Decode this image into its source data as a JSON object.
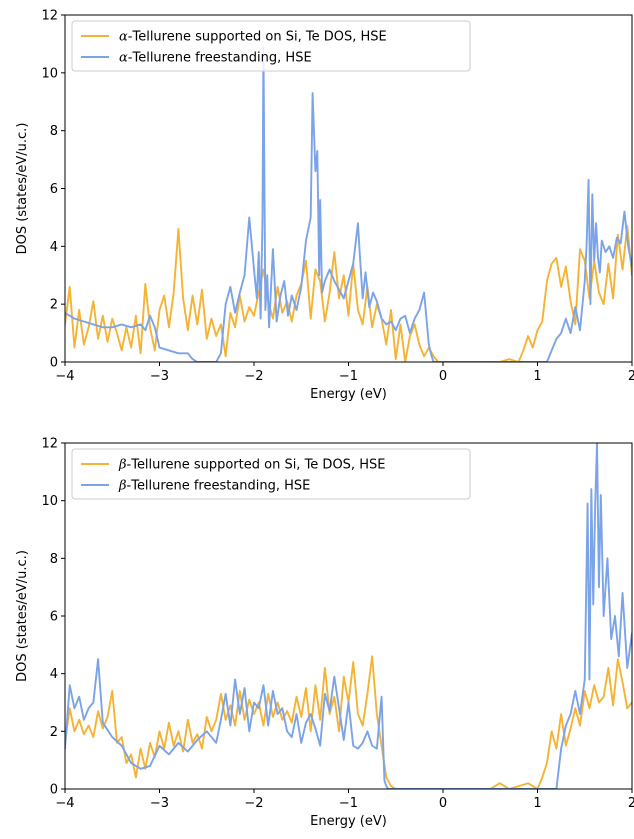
{
  "chart_data": [
    {
      "type": "line",
      "xlabel": "Energy (eV)",
      "ylabel": "DOS (states/eV/u.c.)",
      "xlim": [
        -4,
        2
      ],
      "ylim": [
        0,
        12
      ],
      "xticks": [
        -4,
        -3,
        -2,
        -1,
        0,
        1,
        2
      ],
      "xtick_labels": [
        "−4",
        "−3",
        "−2",
        "−1",
        "0",
        "1",
        "2"
      ],
      "yticks": [
        0,
        2,
        4,
        6,
        8,
        10,
        12
      ],
      "ytick_labels": [
        "0",
        "2",
        "4",
        "6",
        "8",
        "10",
        "12"
      ],
      "grid": false,
      "legend_position": "top-left",
      "series": [
        {
          "name_prefix": "α",
          "name_rest": "-Tellurene supported on Si, Te DOS, HSE",
          "color": "#F5B335",
          "x": [
            -4.0,
            -3.95,
            -3.9,
            -3.85,
            -3.8,
            -3.75,
            -3.7,
            -3.65,
            -3.6,
            -3.55,
            -3.5,
            -3.45,
            -3.4,
            -3.35,
            -3.3,
            -3.25,
            -3.2,
            -3.15,
            -3.1,
            -3.05,
            -3.0,
            -2.95,
            -2.9,
            -2.85,
            -2.8,
            -2.75,
            -2.7,
            -2.65,
            -2.6,
            -2.55,
            -2.5,
            -2.45,
            -2.4,
            -2.35,
            -2.3,
            -2.25,
            -2.2,
            -2.15,
            -2.1,
            -2.05,
            -2.0,
            -1.95,
            -1.9,
            -1.85,
            -1.8,
            -1.75,
            -1.7,
            -1.65,
            -1.6,
            -1.55,
            -1.5,
            -1.45,
            -1.4,
            -1.35,
            -1.3,
            -1.25,
            -1.2,
            -1.15,
            -1.1,
            -1.05,
            -1.0,
            -0.95,
            -0.9,
            -0.85,
            -0.8,
            -0.75,
            -0.7,
            -0.65,
            -0.6,
            -0.55,
            -0.5,
            -0.45,
            -0.4,
            -0.35,
            -0.3,
            -0.25,
            -0.2,
            -0.15,
            -0.1,
            -0.05,
            0.0,
            0.2,
            0.4,
            0.6,
            0.7,
            0.8,
            0.85,
            0.9,
            0.95,
            1.0,
            1.05,
            1.1,
            1.15,
            1.2,
            1.25,
            1.3,
            1.35,
            1.4,
            1.45,
            1.5,
            1.55,
            1.6,
            1.65,
            1.7,
            1.75,
            1.8,
            1.85,
            1.9,
            1.95,
            2.0
          ],
          "y": [
            1.3,
            2.6,
            0.5,
            1.8,
            0.6,
            1.2,
            2.1,
            0.8,
            1.6,
            0.7,
            1.5,
            1.0,
            0.4,
            1.2,
            0.5,
            1.6,
            0.3,
            2.7,
            1.2,
            0.4,
            1.8,
            2.3,
            1.2,
            2.4,
            4.6,
            2.2,
            1.1,
            2.3,
            1.3,
            2.5,
            0.8,
            1.5,
            0.9,
            1.3,
            0.2,
            1.7,
            1.2,
            2.3,
            1.4,
            1.9,
            1.6,
            2.4,
            3.2,
            2.1,
            1.5,
            2.6,
            1.7,
            2.1,
            1.4,
            2.3,
            2.7,
            3.5,
            1.5,
            3.2,
            2.8,
            1.4,
            2.4,
            3.8,
            2.2,
            3.0,
            1.6,
            3.4,
            1.8,
            1.3,
            2.6,
            1.2,
            2.0,
            1.5,
            0.6,
            1.8,
            0.1,
            1.3,
            0.0,
            0.9,
            1.3,
            0.6,
            0.2,
            0.5,
            0.2,
            0.0,
            0.0,
            0.0,
            0.0,
            0.0,
            0.1,
            0.0,
            0.4,
            0.9,
            0.5,
            1.1,
            1.4,
            2.8,
            3.4,
            3.6,
            2.6,
            3.3,
            2.1,
            1.3,
            3.9,
            3.5,
            2.2,
            3.5,
            2.4,
            2.0,
            3.4,
            2.2,
            4.4,
            3.2,
            4.7,
            3.0
          ]
        },
        {
          "name_prefix": "α",
          "name_rest": "-Tellurene freestanding, HSE",
          "color": "#7BA3E8",
          "x": [
            -4.0,
            -3.9,
            -3.8,
            -3.7,
            -3.6,
            -3.5,
            -3.4,
            -3.3,
            -3.2,
            -3.15,
            -3.1,
            -3.05,
            -3.0,
            -2.9,
            -2.8,
            -2.7,
            -2.65,
            -2.6,
            -2.4,
            -2.35,
            -2.3,
            -2.25,
            -2.2,
            -2.15,
            -2.1,
            -2.05,
            -2.0,
            -1.97,
            -1.95,
            -1.93,
            -1.91,
            -1.9,
            -1.88,
            -1.86,
            -1.84,
            -1.8,
            -1.76,
            -1.72,
            -1.68,
            -1.64,
            -1.6,
            -1.55,
            -1.5,
            -1.45,
            -1.4,
            -1.38,
            -1.35,
            -1.33,
            -1.31,
            -1.3,
            -1.28,
            -1.25,
            -1.2,
            -1.15,
            -1.1,
            -1.05,
            -1.0,
            -0.95,
            -0.9,
            -0.88,
            -0.85,
            -0.82,
            -0.78,
            -0.74,
            -0.7,
            -0.65,
            -0.6,
            -0.55,
            -0.5,
            -0.45,
            -0.4,
            -0.35,
            -0.3,
            -0.25,
            -0.2,
            -0.15,
            -0.12,
            -0.1,
            -0.08,
            -0.05,
            0.0,
            0.3,
            0.6,
            0.9,
            1.1,
            1.15,
            1.2,
            1.25,
            1.3,
            1.35,
            1.4,
            1.45,
            1.5,
            1.52,
            1.54,
            1.56,
            1.58,
            1.6,
            1.62,
            1.64,
            1.66,
            1.68,
            1.72,
            1.76,
            1.8,
            1.84,
            1.88,
            1.92,
            1.96,
            2.0
          ],
          "y": [
            1.7,
            1.5,
            1.4,
            1.3,
            1.2,
            1.2,
            1.3,
            1.2,
            1.3,
            1.1,
            1.6,
            1.2,
            0.5,
            0.4,
            0.3,
            0.3,
            0.1,
            0.0,
            0.0,
            0.3,
            2.0,
            2.6,
            1.7,
            2.4,
            3.0,
            5.0,
            3.2,
            2.2,
            3.8,
            1.5,
            4.9,
            10.9,
            1.8,
            3.0,
            1.2,
            3.9,
            1.4,
            2.3,
            2.8,
            1.6,
            2.3,
            1.8,
            2.6,
            4.2,
            5.0,
            9.3,
            6.6,
            7.3,
            3.0,
            5.6,
            2.4,
            2.8,
            3.2,
            2.8,
            2.5,
            2.2,
            2.8,
            3.4,
            4.8,
            3.7,
            2.2,
            3.1,
            1.9,
            2.4,
            2.1,
            1.5,
            1.3,
            1.4,
            1.1,
            1.5,
            1.6,
            1.0,
            1.5,
            1.8,
            2.4,
            0.6,
            0.2,
            0.0,
            0.0,
            0.0,
            0.0,
            0.0,
            0.0,
            0.0,
            0.0,
            0.4,
            0.8,
            1.0,
            1.5,
            1.0,
            1.9,
            1.1,
            2.8,
            4.1,
            6.3,
            2.0,
            5.8,
            3.5,
            4.8,
            3.6,
            3.1,
            4.2,
            3.8,
            4.0,
            3.6,
            4.3,
            4.1,
            5.2,
            4.0,
            3.3
          ]
        }
      ]
    },
    {
      "type": "line",
      "xlabel": "Energy (eV)",
      "ylabel": "DOS (states/eV/u.c.)",
      "xlim": [
        -4,
        2
      ],
      "ylim": [
        0,
        12
      ],
      "xticks": [
        -4,
        -3,
        -2,
        -1,
        0,
        1,
        2
      ],
      "xtick_labels": [
        "−4",
        "−3",
        "−2",
        "−1",
        "0",
        "1",
        "2"
      ],
      "yticks": [
        0,
        2,
        4,
        6,
        8,
        10,
        12
      ],
      "ytick_labels": [
        "0",
        "2",
        "4",
        "6",
        "8",
        "10",
        "12"
      ],
      "grid": false,
      "legend_position": "top-left",
      "series": [
        {
          "name_prefix": "β",
          "name_rest": "-Tellurene supported on Si, Te DOS, HSE",
          "color": "#F5B335",
          "x": [
            -4.0,
            -3.95,
            -3.9,
            -3.85,
            -3.8,
            -3.75,
            -3.7,
            -3.65,
            -3.6,
            -3.55,
            -3.5,
            -3.45,
            -3.4,
            -3.35,
            -3.3,
            -3.25,
            -3.2,
            -3.15,
            -3.1,
            -3.05,
            -3.0,
            -2.95,
            -2.9,
            -2.85,
            -2.8,
            -2.75,
            -2.7,
            -2.65,
            -2.6,
            -2.55,
            -2.5,
            -2.45,
            -2.4,
            -2.35,
            -2.3,
            -2.25,
            -2.2,
            -2.15,
            -2.1,
            -2.05,
            -2.0,
            -1.95,
            -1.9,
            -1.85,
            -1.8,
            -1.75,
            -1.7,
            -1.65,
            -1.6,
            -1.55,
            -1.5,
            -1.45,
            -1.4,
            -1.35,
            -1.3,
            -1.25,
            -1.2,
            -1.15,
            -1.1,
            -1.05,
            -1.0,
            -0.95,
            -0.9,
            -0.85,
            -0.8,
            -0.75,
            -0.7,
            -0.65,
            -0.6,
            -0.55,
            -0.5,
            -0.2,
            0.2,
            0.5,
            0.6,
            0.7,
            0.8,
            0.9,
            1.0,
            1.05,
            1.1,
            1.15,
            1.2,
            1.25,
            1.3,
            1.35,
            1.4,
            1.45,
            1.5,
            1.55,
            1.6,
            1.65,
            1.7,
            1.75,
            1.8,
            1.85,
            1.9,
            1.95,
            2.0
          ],
          "y": [
            1.6,
            2.8,
            2.0,
            2.4,
            1.9,
            2.2,
            1.8,
            2.7,
            2.1,
            2.5,
            3.4,
            1.6,
            1.8,
            0.9,
            1.2,
            0.4,
            1.4,
            0.7,
            1.6,
            1.1,
            2.0,
            1.4,
            2.3,
            1.5,
            2.0,
            1.3,
            2.4,
            1.6,
            1.9,
            1.4,
            2.5,
            2.0,
            2.4,
            3.3,
            2.4,
            2.9,
            2.2,
            3.4,
            2.4,
            3.1,
            2.6,
            3.0,
            2.2,
            3.3,
            2.5,
            3.0,
            2.4,
            2.7,
            2.3,
            3.2,
            2.5,
            3.5,
            2.0,
            3.6,
            2.4,
            4.2,
            2.6,
            3.2,
            2.0,
            3.9,
            3.0,
            4.4,
            2.6,
            2.2,
            3.3,
            4.6,
            2.6,
            1.5,
            0.4,
            0.1,
            0.0,
            0.0,
            0.0,
            0.0,
            0.2,
            0.0,
            0.1,
            0.2,
            0.0,
            0.4,
            0.9,
            2.0,
            1.4,
            2.6,
            1.5,
            2.1,
            2.8,
            2.2,
            3.4,
            2.8,
            3.6,
            3.0,
            3.2,
            4.2,
            2.9,
            4.5,
            3.7,
            2.8,
            3.0
          ]
        },
        {
          "name_prefix": "β",
          "name_rest": "-Tellurene freestanding, HSE",
          "color": "#7BA3E8",
          "x": [
            -4.0,
            -3.95,
            -3.9,
            -3.85,
            -3.8,
            -3.75,
            -3.7,
            -3.65,
            -3.6,
            -3.5,
            -3.4,
            -3.3,
            -3.2,
            -3.1,
            -3.0,
            -2.9,
            -2.8,
            -2.7,
            -2.6,
            -2.5,
            -2.4,
            -2.35,
            -2.3,
            -2.25,
            -2.2,
            -2.15,
            -2.1,
            -2.05,
            -2.0,
            -1.95,
            -1.9,
            -1.85,
            -1.8,
            -1.75,
            -1.7,
            -1.65,
            -1.6,
            -1.55,
            -1.5,
            -1.45,
            -1.4,
            -1.35,
            -1.3,
            -1.25,
            -1.2,
            -1.15,
            -1.1,
            -1.05,
            -1.0,
            -0.95,
            -0.9,
            -0.85,
            -0.8,
            -0.75,
            -0.7,
            -0.65,
            -0.62,
            -0.6,
            -0.58,
            -0.55,
            0.0,
            0.5,
            1.0,
            1.15,
            1.2,
            1.25,
            1.3,
            1.35,
            1.4,
            1.45,
            1.5,
            1.53,
            1.55,
            1.57,
            1.59,
            1.61,
            1.63,
            1.65,
            1.67,
            1.7,
            1.74,
            1.78,
            1.82,
            1.86,
            1.9,
            1.95,
            2.0
          ],
          "y": [
            1.4,
            3.6,
            2.8,
            3.2,
            2.4,
            2.8,
            3.0,
            4.5,
            2.3,
            1.8,
            1.5,
            0.9,
            0.7,
            0.8,
            1.5,
            1.2,
            1.6,
            1.3,
            1.7,
            2.0,
            1.6,
            2.4,
            3.3,
            2.2,
            3.8,
            2.6,
            3.5,
            2.0,
            3.0,
            2.8,
            3.6,
            2.2,
            3.4,
            2.6,
            2.8,
            2.0,
            1.8,
            2.6,
            1.6,
            2.3,
            2.6,
            2.1,
            1.5,
            3.3,
            2.7,
            3.9,
            2.8,
            1.7,
            3.0,
            1.5,
            1.4,
            1.6,
            2.0,
            1.5,
            1.4,
            3.2,
            0.3,
            0.1,
            0.0,
            0.0,
            0.0,
            0.0,
            0.0,
            0.0,
            0.0,
            1.4,
            2.2,
            2.6,
            3.4,
            2.6,
            3.8,
            9.9,
            3.8,
            10.4,
            6.4,
            9.8,
            12.0,
            7.0,
            10.2,
            6.0,
            8.0,
            5.2,
            6.0,
            4.6,
            6.8,
            4.2,
            5.4
          ]
        }
      ]
    }
  ]
}
